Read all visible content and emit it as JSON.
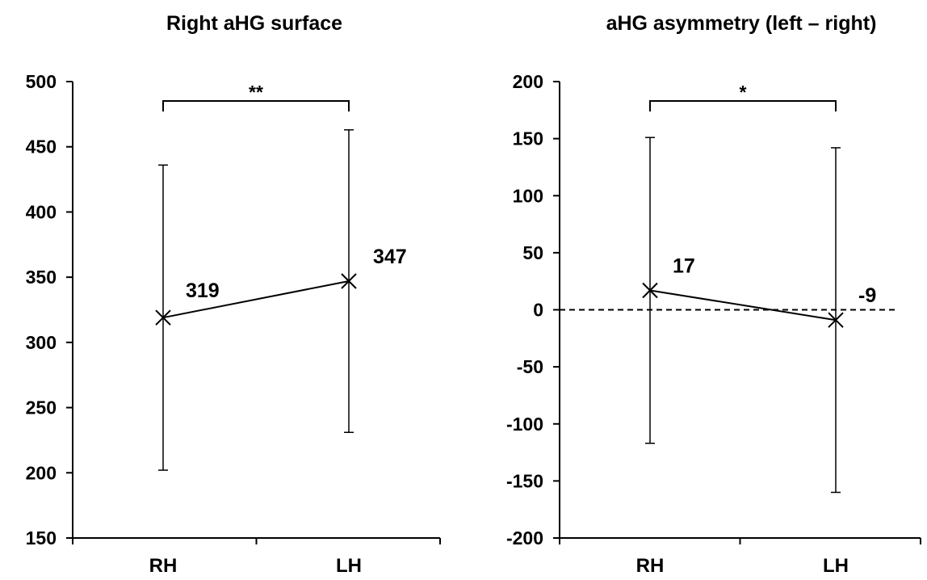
{
  "chart_data": [
    {
      "type": "line",
      "title": "Right aHG surface",
      "categories": [
        "RH",
        "LH"
      ],
      "values": [
        319,
        347
      ],
      "data_labels": [
        "319",
        "347"
      ],
      "error_low": [
        202,
        231
      ],
      "error_high": [
        436,
        463
      ],
      "ylim": [
        150,
        500
      ],
      "yticks": [
        "500",
        "450",
        "400",
        "350",
        "300",
        "250",
        "200",
        "150"
      ],
      "significance": "**",
      "reference_line": null
    },
    {
      "type": "line",
      "title": "aHG asymmetry (left – right)",
      "categories": [
        "RH",
        "LH"
      ],
      "values": [
        17,
        -9
      ],
      "data_labels": [
        "17",
        "-9"
      ],
      "error_low": [
        -117,
        -160
      ],
      "error_high": [
        151,
        142
      ],
      "ylim": [
        -200,
        200
      ],
      "yticks": [
        "200",
        "150",
        "100",
        "50",
        "0",
        "-50",
        "-100",
        "-150",
        "-200"
      ],
      "significance": "*",
      "reference_line": 0
    }
  ]
}
